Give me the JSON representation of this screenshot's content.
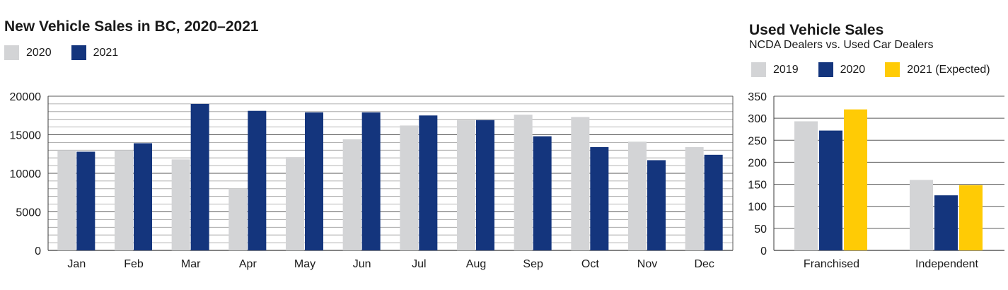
{
  "chart_data": [
    {
      "type": "bar",
      "title": "New Vehicle Sales in BC, 2020–2021",
      "subtitle": "",
      "categories": [
        "Jan",
        "Feb",
        "Mar",
        "Apr",
        "May",
        "Jun",
        "Jul",
        "Aug",
        "Sep",
        "Oct",
        "Nov",
        "Dec"
      ],
      "series": [
        {
          "name": "2020",
          "color": "#d3d4d6",
          "values": [
            13000,
            13000,
            11800,
            8000,
            12100,
            14400,
            16200,
            16900,
            17600,
            17300,
            14100,
            13400
          ]
        },
        {
          "name": "2021",
          "color": "#14357d",
          "values": [
            12800,
            13900,
            19000,
            18100,
            17900,
            17900,
            17500,
            16900,
            14800,
            13400,
            11700,
            12400
          ]
        }
      ],
      "ylim": [
        0,
        20000
      ],
      "yticks": [
        0,
        5000,
        10000,
        15000,
        20000
      ],
      "xlabel": "",
      "ylabel": "",
      "grid": true,
      "legend": "top-left"
    },
    {
      "type": "bar",
      "title": "Used Vehicle Sales",
      "subtitle": "NCDA Dealers vs. Used Car Dealers",
      "categories": [
        "Franchised",
        "Independent"
      ],
      "series": [
        {
          "name": "2019",
          "color": "#d3d4d6",
          "values": [
            293,
            160
          ]
        },
        {
          "name": "2020",
          "color": "#14357d",
          "values": [
            272,
            125
          ]
        },
        {
          "name": "2021 (Expected)",
          "color": "#ffcb05",
          "values": [
            320,
            148
          ]
        }
      ],
      "ylim": [
        0,
        350
      ],
      "yticks": [
        0,
        50,
        100,
        150,
        200,
        250,
        300,
        350
      ],
      "xlabel": "",
      "ylabel": "",
      "grid": true,
      "legend": "top-left"
    }
  ]
}
